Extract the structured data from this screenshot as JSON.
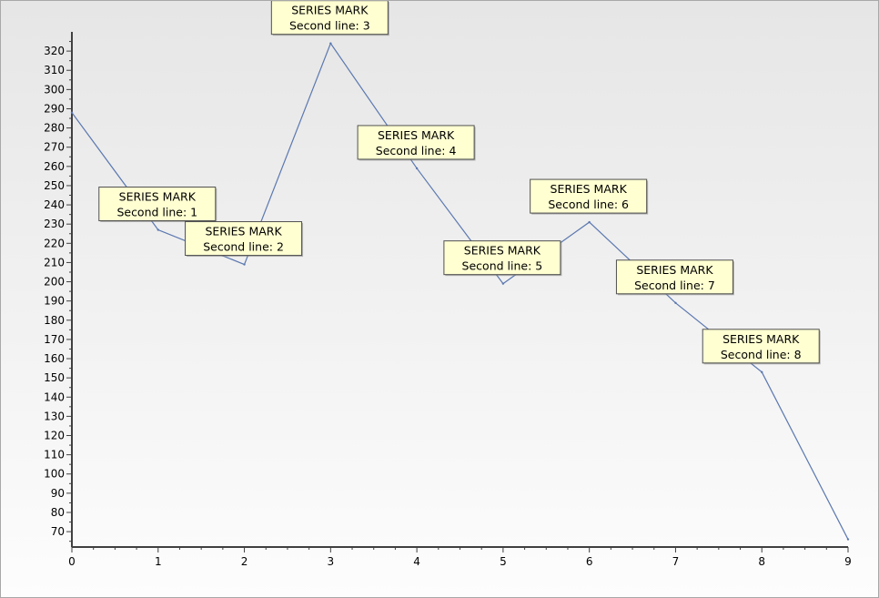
{
  "chart_data": {
    "type": "line",
    "x": [
      0,
      1,
      2,
      3,
      4,
      5,
      6,
      7,
      8,
      9
    ],
    "series": [
      {
        "values": [
          288,
          227,
          209,
          324,
          259,
          199,
          231,
          189,
          153,
          66
        ],
        "color": "#5b78b0"
      }
    ],
    "marks": [
      {
        "index": 1,
        "line1": "SERIES MARK",
        "line2": "Second line: 1"
      },
      {
        "index": 2,
        "line1": "SERIES MARK",
        "line2": "Second line: 2"
      },
      {
        "index": 3,
        "line1": "SERIES MARK",
        "line2": "Second line: 3"
      },
      {
        "index": 4,
        "line1": "SERIES MARK",
        "line2": "Second line: 4"
      },
      {
        "index": 5,
        "line1": "SERIES MARK",
        "line2": "Second line: 5"
      },
      {
        "index": 6,
        "line1": "SERIES MARK",
        "line2": "Second line: 6"
      },
      {
        "index": 7,
        "line1": "SERIES MARK",
        "line2": "Second line: 7"
      },
      {
        "index": 8,
        "line1": "SERIES MARK",
        "line2": "Second line: 8"
      }
    ],
    "xlim": [
      0,
      9
    ],
    "ylim": [
      62,
      330
    ],
    "x_ticks": [
      0,
      1,
      2,
      3,
      4,
      5,
      6,
      7,
      8,
      9
    ],
    "y_ticks": [
      70,
      80,
      90,
      100,
      110,
      120,
      130,
      140,
      150,
      160,
      170,
      180,
      190,
      200,
      210,
      220,
      230,
      240,
      250,
      260,
      270,
      280,
      290,
      300,
      310,
      320
    ],
    "title": "",
    "xlabel": "",
    "ylabel": "",
    "grid": false,
    "mark_fill": "#ffffd2",
    "axis_color": "#404040"
  }
}
